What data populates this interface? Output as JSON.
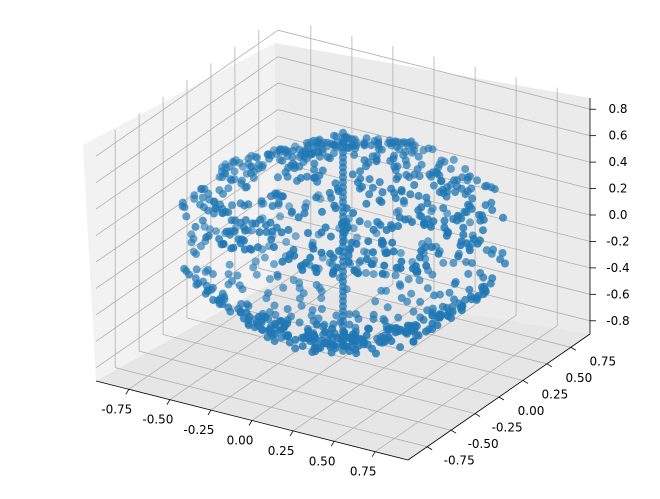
{
  "chart_data": {
    "type": "scatter",
    "projection": "3d",
    "title": "",
    "xlabel": "",
    "ylabel": "",
    "zlabel": "",
    "grid": true,
    "legend": "none",
    "xlim": [
      -0.95,
      0.95
    ],
    "ylim": [
      -0.95,
      0.95
    ],
    "zlim": [
      -0.9,
      0.9
    ],
    "x_ticks": [
      "-0.75",
      "-0.50",
      "-0.25",
      "0.00",
      "0.25",
      "0.50",
      "0.75"
    ],
    "y_ticks": [
      "-0.75",
      "-0.50",
      "-0.25",
      "0.00",
      "0.25",
      "0.50",
      "0.75"
    ],
    "z_ticks": [
      "-0.8",
      "-0.6",
      "-0.4",
      "-0.2",
      "0.0",
      "0.2",
      "0.4",
      "0.6",
      "0.8"
    ],
    "series": [
      {
        "color": "#1f77b4",
        "marker": "o",
        "description_of_points": "points on a lens-shaped surface: upper half densely clustered near x=0 and z~0.2-0.4, lower half sparser; vertical column of points along x=0, y=0"
      }
    ]
  },
  "colors": {
    "marker": "#1f77b4",
    "pane_left": "#f2f2f2",
    "pane_right": "#ebebeb",
    "pane_floor": "#e6e6e6",
    "grid": "#b0b0b0"
  }
}
